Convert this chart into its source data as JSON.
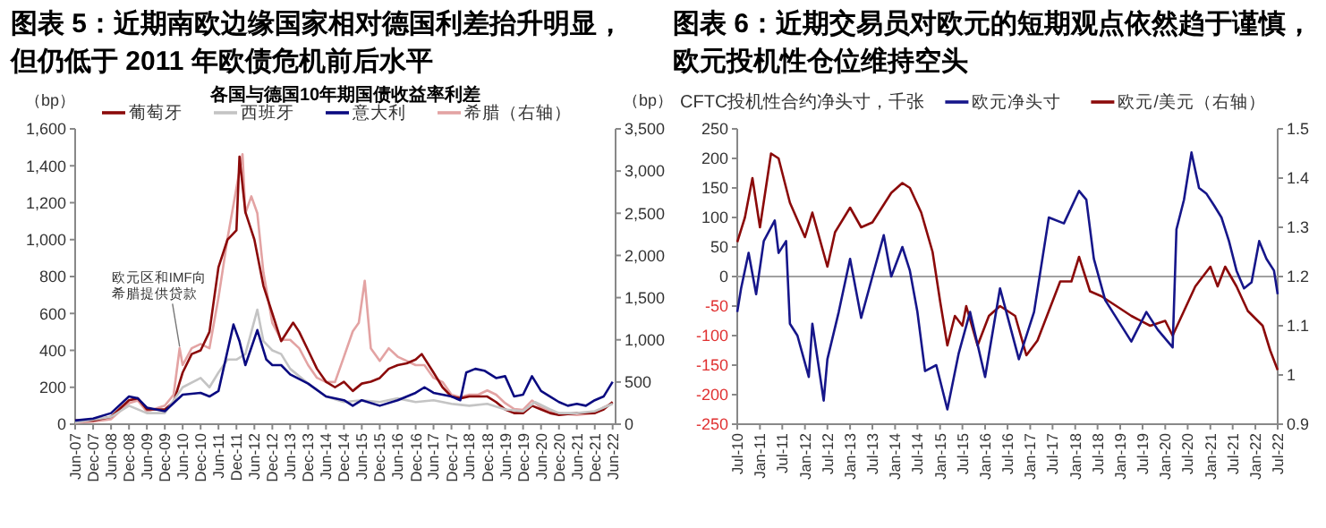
{
  "chart_data": [
    {
      "type": "line",
      "title": "图表 5：近期南欧边缘国家相对德国利差抬升明显，但仍低于 2011 年欧债危机前后水平",
      "subtitle": "各国与德国10年期国债收益率利差",
      "ylabel": "（bp）",
      "y2label": "（bp）",
      "legend": "top",
      "annotations": [
        {
          "text": "欧元区和IMF向希腊提供贷款",
          "x": "2010-05",
          "y": 420
        }
      ],
      "xlim": [
        "2007-06",
        "2022-07"
      ],
      "xticks": [
        {
          "value": "2007-06",
          "label": "Jun-07"
        },
        {
          "value": "2007-12",
          "label": "Dec-07"
        },
        {
          "value": "2008-06",
          "label": "Jun-08"
        },
        {
          "value": "2008-12",
          "label": "Dec-08"
        },
        {
          "value": "2009-06",
          "label": "Jun-09"
        },
        {
          "value": "2009-12",
          "label": "Dec-09"
        },
        {
          "value": "2010-06",
          "label": "Jun-10"
        },
        {
          "value": "2010-12",
          "label": "Dec-10"
        },
        {
          "value": "2011-06",
          "label": "Jun-11"
        },
        {
          "value": "2011-12",
          "label": "Dec-11"
        },
        {
          "value": "2012-06",
          "label": "Jun-12"
        },
        {
          "value": "2012-12",
          "label": "Dec-12"
        },
        {
          "value": "2013-06",
          "label": "Jun-13"
        },
        {
          "value": "2013-12",
          "label": "Dec-13"
        },
        {
          "value": "2014-06",
          "label": "Jun-14"
        },
        {
          "value": "2014-12",
          "label": "Dec-14"
        },
        {
          "value": "2015-06",
          "label": "Jun-15"
        },
        {
          "value": "2015-12",
          "label": "Dec-15"
        },
        {
          "value": "2016-06",
          "label": "Jun-16"
        },
        {
          "value": "2016-12",
          "label": "Dec-16"
        },
        {
          "value": "2017-06",
          "label": "Jun-17"
        },
        {
          "value": "2017-12",
          "label": "Dec-17"
        },
        {
          "value": "2018-06",
          "label": "Jun-18"
        },
        {
          "value": "2018-12",
          "label": "Dec-18"
        },
        {
          "value": "2019-06",
          "label": "Jun-19"
        },
        {
          "value": "2019-12",
          "label": "Dec-19"
        },
        {
          "value": "2020-06",
          "label": "Jun-20"
        },
        {
          "value": "2020-12",
          "label": "Dec-20"
        },
        {
          "value": "2021-06",
          "label": "Jun-21"
        },
        {
          "value": "2021-12",
          "label": "Dec-21"
        },
        {
          "value": "2022-06",
          "label": "Jun-22"
        }
      ],
      "ylim": [
        0,
        1600
      ],
      "yticks": [
        0,
        200,
        400,
        600,
        800,
        {
          "value": 1000,
          "label": "1,000"
        },
        {
          "value": 1200,
          "label": "1,200"
        },
        {
          "value": 1400,
          "label": "1,400"
        },
        {
          "value": 1600,
          "label": "1,600"
        }
      ],
      "y2lim": [
        0,
        3500
      ],
      "y2ticks": [
        0,
        500,
        {
          "value": 1000,
          "label": "1,000"
        },
        {
          "value": 1500,
          "label": "1,500"
        },
        {
          "value": 2000,
          "label": "2,000"
        },
        {
          "value": 2500,
          "label": "2,500"
        },
        {
          "value": 3000,
          "label": "3,000"
        },
        {
          "value": 3500,
          "label": "3,500"
        }
      ],
      "series": [
        {
          "name": "葡萄牙",
          "color": "#8b0a0a",
          "x": [
            "2007-06",
            "2007-12",
            "2008-06",
            "2008-12",
            "2009-03",
            "2009-06",
            "2009-12",
            "2010-03",
            "2010-06",
            "2010-09",
            "2010-12",
            "2011-03",
            "2011-06",
            "2011-09",
            "2011-12",
            "2012-01",
            "2012-03",
            "2012-06",
            "2012-09",
            "2012-12",
            "2013-03",
            "2013-07",
            "2013-09",
            "2013-12",
            "2014-03",
            "2014-06",
            "2014-09",
            "2014-12",
            "2015-03",
            "2015-06",
            "2015-09",
            "2015-12",
            "2016-03",
            "2016-06",
            "2016-09",
            "2016-12",
            "2017-02",
            "2017-06",
            "2017-09",
            "2017-12",
            "2018-03",
            "2018-06",
            "2018-09",
            "2018-12",
            "2019-03",
            "2019-06",
            "2019-09",
            "2019-12",
            "2020-03",
            "2020-06",
            "2020-09",
            "2020-12",
            "2021-06",
            "2021-12",
            "2022-03",
            "2022-06"
          ],
          "values": [
            20,
            20,
            40,
            130,
            140,
            80,
            80,
            120,
            280,
            380,
            400,
            500,
            850,
            1000,
            1050,
            1450,
            1150,
            1000,
            750,
            600,
            450,
            550,
            500,
            400,
            300,
            230,
            200,
            230,
            180,
            220,
            230,
            250,
            300,
            320,
            330,
            350,
            380,
            280,
            200,
            150,
            140,
            150,
            150,
            150,
            120,
            80,
            60,
            60,
            100,
            80,
            60,
            50,
            60,
            60,
            80,
            120
          ]
        },
        {
          "name": "西班牙",
          "color": "#c4c4c4",
          "x": [
            "2007-06",
            "2008-06",
            "2008-12",
            "2009-06",
            "2009-12",
            "2010-06",
            "2010-12",
            "2011-03",
            "2011-06",
            "2011-09",
            "2011-12",
            "2012-03",
            "2012-07",
            "2012-09",
            "2012-12",
            "2013-03",
            "2013-06",
            "2013-12",
            "2014-06",
            "2014-12",
            "2015-06",
            "2015-12",
            "2016-06",
            "2016-12",
            "2017-06",
            "2017-12",
            "2018-06",
            "2018-12",
            "2019-06",
            "2019-12",
            "2020-04",
            "2020-09",
            "2020-12",
            "2021-06",
            "2021-12",
            "2022-06"
          ],
          "values": [
            10,
            40,
            100,
            60,
            60,
            200,
            250,
            200,
            280,
            350,
            350,
            380,
            620,
            450,
            400,
            380,
            300,
            220,
            150,
            120,
            130,
            120,
            140,
            120,
            130,
            110,
            100,
            110,
            80,
            70,
            120,
            80,
            60,
            60,
            70,
            110
          ]
        },
        {
          "name": "意大利",
          "color": "#0a0a80",
          "x": [
            "2007-06",
            "2007-12",
            "2008-06",
            "2008-12",
            "2009-03",
            "2009-06",
            "2009-12",
            "2010-06",
            "2010-12",
            "2011-03",
            "2011-06",
            "2011-11",
            "2012-01",
            "2012-03",
            "2012-07",
            "2012-10",
            "2012-12",
            "2013-03",
            "2013-06",
            "2013-12",
            "2014-06",
            "2014-12",
            "2015-03",
            "2015-06",
            "2015-12",
            "2016-06",
            "2016-12",
            "2017-03",
            "2017-06",
            "2017-12",
            "2018-03",
            "2018-05",
            "2018-08",
            "2018-11",
            "2019-03",
            "2019-06",
            "2019-09",
            "2019-12",
            "2020-03",
            "2020-06",
            "2020-09",
            "2020-12",
            "2021-03",
            "2021-06",
            "2021-09",
            "2021-12",
            "2022-03",
            "2022-06"
          ],
          "values": [
            20,
            30,
            60,
            150,
            140,
            90,
            70,
            160,
            170,
            150,
            180,
            540,
            450,
            320,
            510,
            350,
            320,
            320,
            270,
            220,
            150,
            130,
            100,
            130,
            100,
            130,
            170,
            200,
            170,
            150,
            130,
            280,
            300,
            290,
            250,
            260,
            150,
            160,
            260,
            180,
            150,
            120,
            100,
            110,
            100,
            130,
            150,
            230
          ]
        },
        {
          "name": "希腊（右轴）",
          "color": "#e3a3a3",
          "axis": "y2",
          "x": [
            "2007-06",
            "2007-12",
            "2008-06",
            "2008-12",
            "2009-03",
            "2009-06",
            "2009-12",
            "2010-03",
            "2010-05",
            "2010-06",
            "2010-09",
            "2010-12",
            "2011-03",
            "2011-06",
            "2011-09",
            "2011-12",
            "2012-02",
            "2012-03",
            "2012-05",
            "2012-07",
            "2012-09",
            "2012-12",
            "2013-03",
            "2013-06",
            "2013-09",
            "2013-12",
            "2014-03",
            "2014-06",
            "2014-09",
            "2014-12",
            "2015-03",
            "2015-05",
            "2015-07",
            "2015-09",
            "2015-12",
            "2016-03",
            "2016-06",
            "2016-12",
            "2017-03",
            "2017-06",
            "2017-09",
            "2017-12",
            "2018-03",
            "2018-06",
            "2018-09",
            "2018-12",
            "2019-03",
            "2019-06",
            "2019-09",
            "2019-12",
            "2020-03",
            "2020-06",
            "2020-09",
            "2020-12",
            "2021-06",
            "2021-12",
            "2022-03",
            "2022-06"
          ],
          "values": [
            20,
            30,
            60,
            250,
            280,
            150,
            220,
            350,
            900,
            700,
            900,
            950,
            900,
            1500,
            2200,
            2800,
            3200,
            2500,
            2700,
            2500,
            1800,
            1200,
            1000,
            1000,
            900,
            700,
            550,
            500,
            500,
            800,
            1100,
            1200,
            1700,
            900,
            750,
            900,
            800,
            700,
            700,
            550,
            500,
            350,
            320,
            350,
            350,
            400,
            350,
            250,
            180,
            170,
            280,
            200,
            150,
            130,
            110,
            130,
            200,
            250
          ]
        }
      ]
    },
    {
      "type": "line",
      "title": "图表 6：近期交易员对欧元的短期观点依然趋于谨慎，欧元投机性仓位维持空头",
      "ylabel": "CFTC投机性合约净头寸，千张",
      "legend": "top",
      "xlim": [
        "2010-07",
        "2022-07"
      ],
      "xticks": [
        {
          "value": "2010-07",
          "label": "Jul-10"
        },
        {
          "value": "2011-01",
          "label": "Jan-11"
        },
        {
          "value": "2011-07",
          "label": "Jul-11"
        },
        {
          "value": "2012-01",
          "label": "Jan-12"
        },
        {
          "value": "2012-07",
          "label": "Jul-12"
        },
        {
          "value": "2013-01",
          "label": "Jan-13"
        },
        {
          "value": "2013-07",
          "label": "Jul-13"
        },
        {
          "value": "2014-01",
          "label": "Jan-14"
        },
        {
          "value": "2014-07",
          "label": "Jul-14"
        },
        {
          "value": "2015-01",
          "label": "Jan-15"
        },
        {
          "value": "2015-07",
          "label": "Jul-15"
        },
        {
          "value": "2016-01",
          "label": "Jan-16"
        },
        {
          "value": "2016-07",
          "label": "Jul-16"
        },
        {
          "value": "2017-01",
          "label": "Jan-17"
        },
        {
          "value": "2017-07",
          "label": "Jul-17"
        },
        {
          "value": "2018-01",
          "label": "Jan-18"
        },
        {
          "value": "2018-07",
          "label": "Jul-18"
        },
        {
          "value": "2019-01",
          "label": "Jan-19"
        },
        {
          "value": "2019-07",
          "label": "Jul-19"
        },
        {
          "value": "2020-01",
          "label": "Jan-20"
        },
        {
          "value": "2020-07",
          "label": "Jul-20"
        },
        {
          "value": "2021-01",
          "label": "Jan-21"
        },
        {
          "value": "2021-07",
          "label": "Jul-21"
        },
        {
          "value": "2022-01",
          "label": "Jan-22"
        },
        {
          "value": "2022-07",
          "label": "Jul-22"
        }
      ],
      "ylim": [
        -250,
        250
      ],
      "yticks": [
        -250,
        -200,
        -150,
        -100,
        -50,
        0,
        50,
        100,
        150,
        200,
        250
      ],
      "y2lim": [
        0.9,
        1.5
      ],
      "y2ticks": [
        0.9,
        1,
        1.1,
        1.2,
        1.3,
        1.4,
        1.5
      ],
      "ref_lines": [
        {
          "axis": "y",
          "value": 0,
          "color": "#a0a0a0"
        }
      ],
      "series": [
        {
          "name": "欧元净头寸",
          "color": "#16168a",
          "x": [
            "2010-07",
            "2010-08",
            "2010-10",
            "2010-12",
            "2011-02",
            "2011-05",
            "2011-06",
            "2011-08",
            "2011-09",
            "2011-11",
            "2012-02",
            "2012-03",
            "2012-06",
            "2012-07",
            "2012-10",
            "2013-01",
            "2013-04",
            "2013-07",
            "2013-10",
            "2013-12",
            "2014-03",
            "2014-05",
            "2014-07",
            "2014-09",
            "2014-12",
            "2015-03",
            "2015-06",
            "2015-09",
            "2016-01",
            "2016-05",
            "2016-10",
            "2017-02",
            "2017-06",
            "2017-10",
            "2018-02",
            "2018-04",
            "2018-06",
            "2018-09",
            "2019-04",
            "2019-08",
            "2019-11",
            "2020-03",
            "2020-04",
            "2020-06",
            "2020-08",
            "2020-10",
            "2020-12",
            "2021-02",
            "2021-04",
            "2021-06",
            "2021-08",
            "2021-10",
            "2021-12",
            "2022-02",
            "2022-04",
            "2022-06",
            "2022-07"
          ],
          "values": [
            -60,
            -20,
            40,
            -30,
            60,
            95,
            40,
            60,
            -80,
            -100,
            -170,
            -80,
            -210,
            -140,
            -60,
            30,
            -70,
            0,
            70,
            0,
            50,
            10,
            -60,
            -160,
            -150,
            -225,
            -130,
            -60,
            -170,
            -20,
            -140,
            -60,
            100,
            90,
            145,
            130,
            30,
            -40,
            -110,
            -60,
            -90,
            -120,
            80,
            130,
            210,
            150,
            140,
            120,
            100,
            60,
            10,
            -20,
            -10,
            60,
            30,
            10,
            -30
          ]
        },
        {
          "name": "欧元/美元（右轴）",
          "color": "#8b0a0a",
          "axis": "y2",
          "x": [
            "2010-07",
            "2010-09",
            "2010-11",
            "2011-01",
            "2011-04",
            "2011-06",
            "2011-09",
            "2012-01",
            "2012-03",
            "2012-07",
            "2012-09",
            "2013-01",
            "2013-04",
            "2013-07",
            "2013-12",
            "2014-03",
            "2014-05",
            "2014-08",
            "2014-11",
            "2015-01",
            "2015-03",
            "2015-05",
            "2015-07",
            "2015-08",
            "2015-11",
            "2016-02",
            "2016-05",
            "2016-09",
            "2016-12",
            "2017-03",
            "2017-06",
            "2017-09",
            "2017-12",
            "2018-02",
            "2018-05",
            "2018-08",
            "2018-12",
            "2019-04",
            "2019-09",
            "2020-01",
            "2020-03",
            "2020-06",
            "2020-09",
            "2021-01",
            "2021-03",
            "2021-05",
            "2021-08",
            "2021-11",
            "2022-03",
            "2022-05",
            "2022-07"
          ],
          "values": [
            1.27,
            1.32,
            1.4,
            1.3,
            1.45,
            1.44,
            1.35,
            1.28,
            1.33,
            1.22,
            1.29,
            1.34,
            1.3,
            1.31,
            1.37,
            1.39,
            1.38,
            1.33,
            1.25,
            1.15,
            1.06,
            1.12,
            1.1,
            1.14,
            1.06,
            1.12,
            1.14,
            1.12,
            1.04,
            1.07,
            1.13,
            1.19,
            1.19,
            1.24,
            1.17,
            1.16,
            1.14,
            1.12,
            1.1,
            1.11,
            1.08,
            1.13,
            1.18,
            1.22,
            1.18,
            1.22,
            1.18,
            1.13,
            1.1,
            1.05,
            1.01
          ]
        }
      ]
    }
  ]
}
